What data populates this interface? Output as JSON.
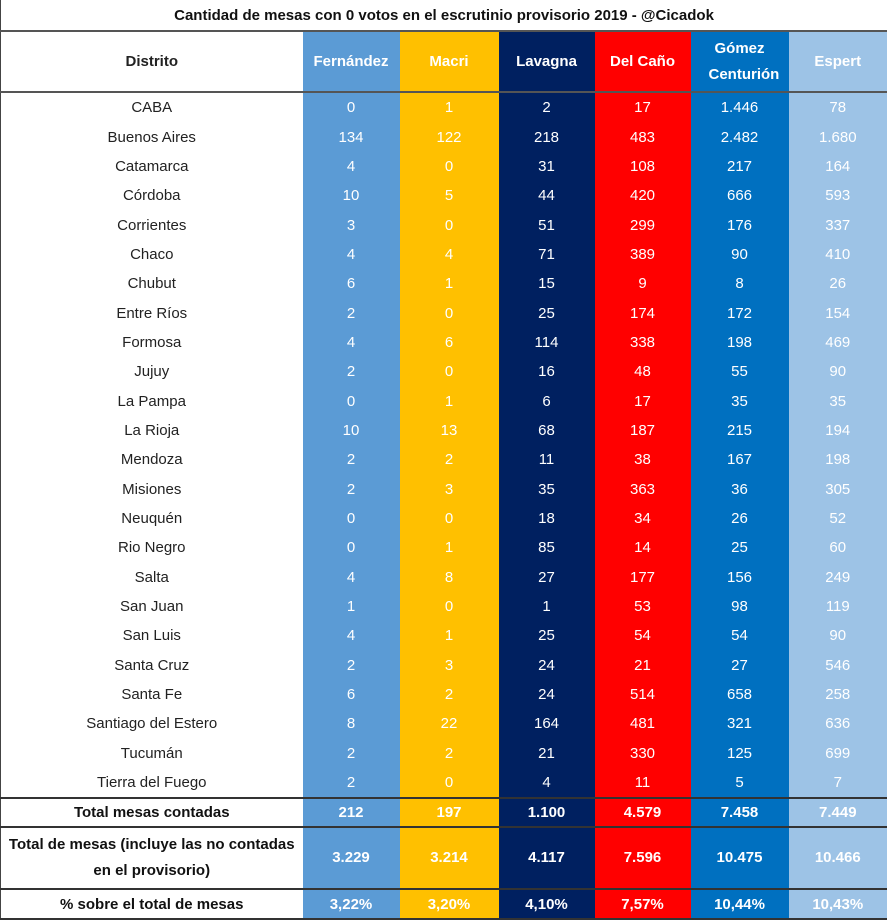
{
  "chart_data": {
    "type": "table",
    "title": "Cantidad de mesas con 0 votos en el escrutinio provisorio 2019 - @Cicadok",
    "row_header": "Distrito",
    "columns": [
      {
        "name": "Fernández",
        "color": "#5b9bd5"
      },
      {
        "name": "Macri",
        "color": "#ffc000"
      },
      {
        "name": "Lavagna",
        "color": "#002060"
      },
      {
        "name": "Del Caño",
        "color": "#ff0000"
      },
      {
        "name": "Gómez Centurión",
        "color": "#0070c0"
      },
      {
        "name": "Espert",
        "color": "#9dc3e6"
      }
    ],
    "rows": [
      {
        "label": "CABA",
        "values": [
          "0",
          "1",
          "2",
          "17",
          "1.446",
          "78"
        ]
      },
      {
        "label": "Buenos Aires",
        "values": [
          "134",
          "122",
          "218",
          "483",
          "2.482",
          "1.680"
        ]
      },
      {
        "label": "Catamarca",
        "values": [
          "4",
          "0",
          "31",
          "108",
          "217",
          "164"
        ]
      },
      {
        "label": "Córdoba",
        "values": [
          "10",
          "5",
          "44",
          "420",
          "666",
          "593"
        ]
      },
      {
        "label": "Corrientes",
        "values": [
          "3",
          "0",
          "51",
          "299",
          "176",
          "337"
        ]
      },
      {
        "label": "Chaco",
        "values": [
          "4",
          "4",
          "71",
          "389",
          "90",
          "410"
        ]
      },
      {
        "label": "Chubut",
        "values": [
          "6",
          "1",
          "15",
          "9",
          "8",
          "26"
        ]
      },
      {
        "label": "Entre Ríos",
        "values": [
          "2",
          "0",
          "25",
          "174",
          "172",
          "154"
        ]
      },
      {
        "label": "Formosa",
        "values": [
          "4",
          "6",
          "114",
          "338",
          "198",
          "469"
        ]
      },
      {
        "label": "Jujuy",
        "values": [
          "2",
          "0",
          "16",
          "48",
          "55",
          "90"
        ]
      },
      {
        "label": "La Pampa",
        "values": [
          "0",
          "1",
          "6",
          "17",
          "35",
          "35"
        ]
      },
      {
        "label": "La Rioja",
        "values": [
          "10",
          "13",
          "68",
          "187",
          "215",
          "194"
        ]
      },
      {
        "label": "Mendoza",
        "values": [
          "2",
          "2",
          "11",
          "38",
          "167",
          "198"
        ]
      },
      {
        "label": "Misiones",
        "values": [
          "2",
          "3",
          "35",
          "363",
          "36",
          "305"
        ]
      },
      {
        "label": "Neuquén",
        "values": [
          "0",
          "0",
          "18",
          "34",
          "26",
          "52"
        ]
      },
      {
        "label": "Rio Negro",
        "values": [
          "0",
          "1",
          "85",
          "14",
          "25",
          "60"
        ]
      },
      {
        "label": "Salta",
        "values": [
          "4",
          "8",
          "27",
          "177",
          "156",
          "249"
        ]
      },
      {
        "label": "San Juan",
        "values": [
          "1",
          "0",
          "1",
          "53",
          "98",
          "119"
        ]
      },
      {
        "label": "San Luis",
        "values": [
          "4",
          "1",
          "25",
          "54",
          "54",
          "90"
        ]
      },
      {
        "label": "Santa Cruz",
        "values": [
          "2",
          "3",
          "24",
          "21",
          "27",
          "546"
        ]
      },
      {
        "label": "Santa Fe",
        "values": [
          "6",
          "2",
          "24",
          "514",
          "658",
          "258"
        ]
      },
      {
        "label": "Santiago del Estero",
        "values": [
          "8",
          "22",
          "164",
          "481",
          "321",
          "636"
        ]
      },
      {
        "label": "Tucumán",
        "values": [
          "2",
          "2",
          "21",
          "330",
          "125",
          "699"
        ]
      },
      {
        "label": "Tierra del Fuego",
        "values": [
          "2",
          "0",
          "4",
          "11",
          "5",
          "7"
        ]
      }
    ],
    "totals": [
      {
        "label": "Total mesas contadas",
        "values": [
          "212",
          "197",
          "1.100",
          "4.579",
          "7.458",
          "7.449"
        ]
      },
      {
        "label": "Total de mesas (incluye las no contadas en el provisorio)",
        "values": [
          "3.229",
          "3.214",
          "4.117",
          "7.596",
          "10.475",
          "10.466"
        ]
      },
      {
        "label": "% sobre el total de mesas",
        "values": [
          "3,22%",
          "3,20%",
          "4,10%",
          "7,57%",
          "10,44%",
          "10,43%"
        ]
      }
    ]
  }
}
